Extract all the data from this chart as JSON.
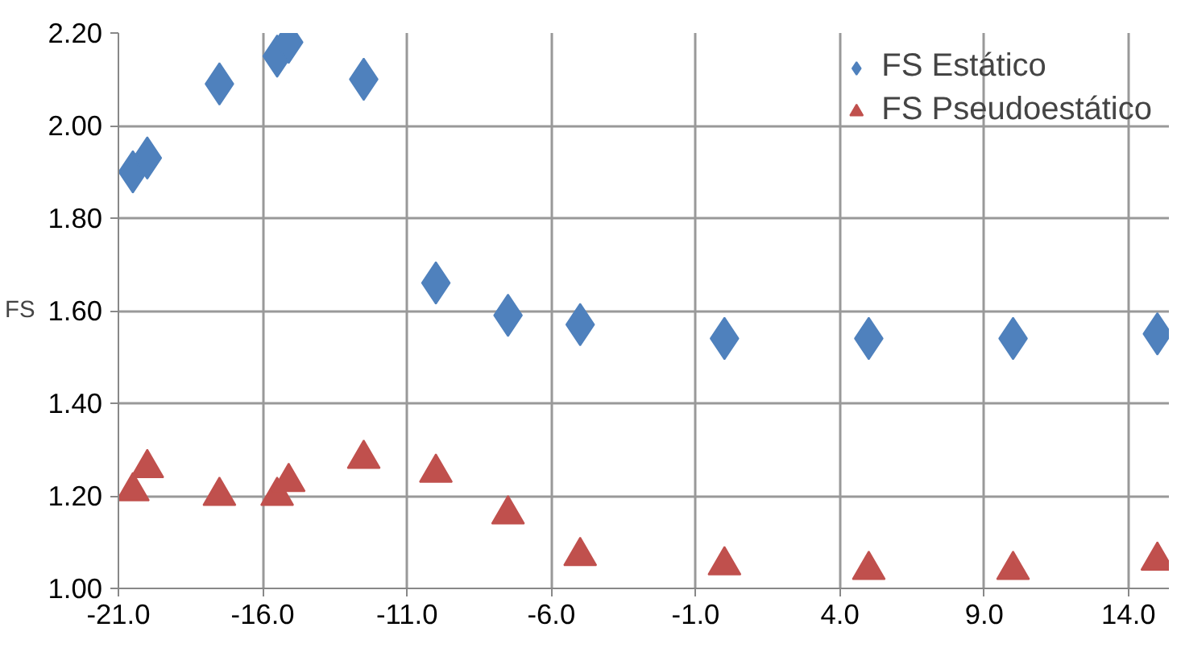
{
  "chart_data": {
    "type": "scatter",
    "ylabel": "FS",
    "x": [
      -20.5,
      -20.0,
      -17.5,
      -15.5,
      -15.1,
      -12.5,
      -10.0,
      -7.5,
      -5.0,
      0.0,
      5.0,
      10.0,
      15.0
    ],
    "series": [
      {
        "name": "FS Estático",
        "color": "#4f81bd",
        "marker": "diamond",
        "values": [
          1.9,
          1.93,
          2.09,
          2.15,
          2.18,
          2.1,
          1.66,
          1.59,
          1.57,
          1.54,
          1.54,
          1.54,
          1.55
        ]
      },
      {
        "name": "FS Pseudoestático",
        "color": "#c0504d",
        "marker": "triangle",
        "values": [
          1.21,
          1.26,
          1.2,
          1.2,
          1.23,
          1.28,
          1.25,
          1.16,
          1.07,
          1.05,
          1.04,
          1.04,
          1.06
        ]
      }
    ],
    "xlim": [
      -21,
      15.4
    ],
    "xticks": [
      {
        "value": -21,
        "label": "-21.0"
      },
      {
        "value": -16,
        "label": "-16.0"
      },
      {
        "value": -11,
        "label": "-11.0"
      },
      {
        "value": -6,
        "label": "-6.0"
      },
      {
        "value": -1,
        "label": "-1.0"
      },
      {
        "value": 4,
        "label": "4.0"
      },
      {
        "value": 9,
        "label": "9.0"
      },
      {
        "value": 14,
        "label": "14.0"
      }
    ],
    "ylim": [
      1.0,
      2.2
    ],
    "yticks": [
      {
        "value": 1.0,
        "label": "1.00"
      },
      {
        "value": 1.2,
        "label": "1.20"
      },
      {
        "value": 1.4,
        "label": "1.40"
      },
      {
        "value": 1.6,
        "label": "1.60"
      },
      {
        "value": 1.8,
        "label": "1.80"
      },
      {
        "value": 2.0,
        "label": "2.00"
      },
      {
        "value": 2.2,
        "label": "2.20"
      }
    ],
    "grid": true,
    "legend": "top right"
  }
}
